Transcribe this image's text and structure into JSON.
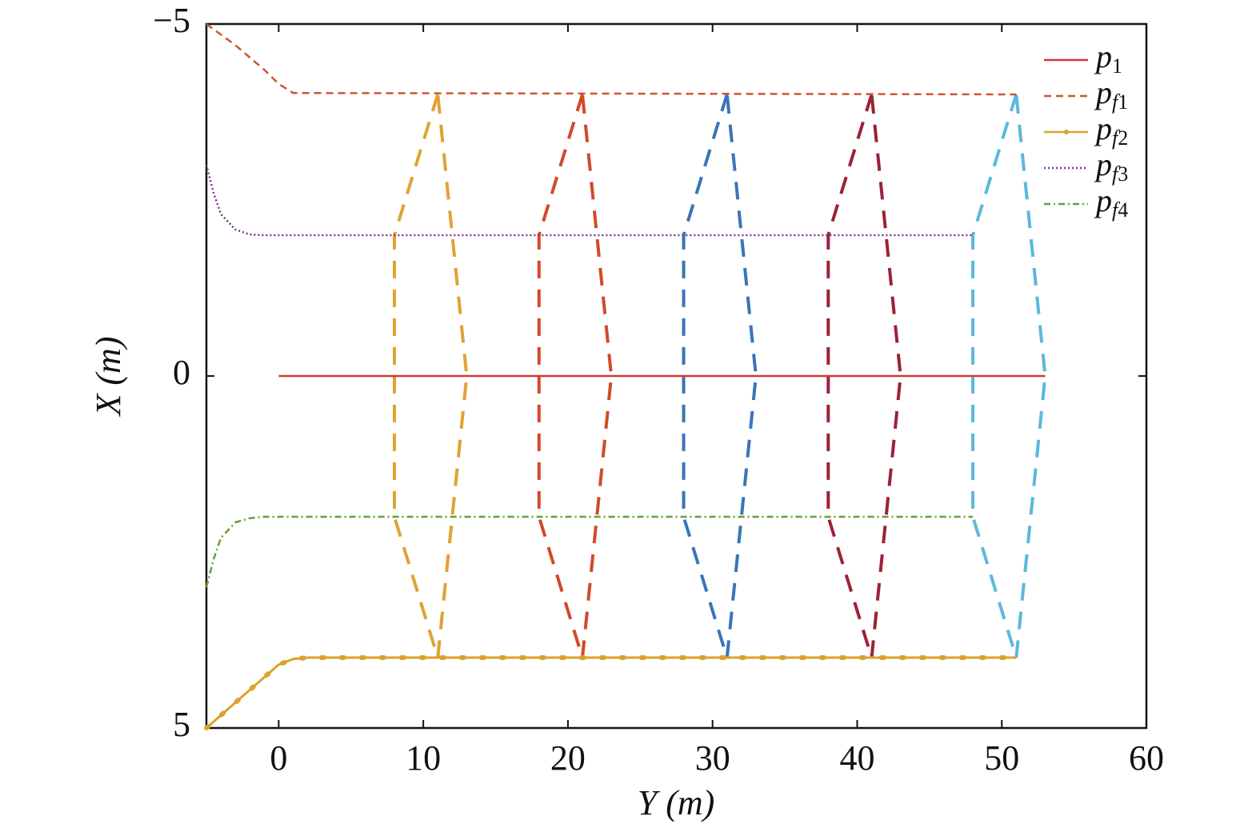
{
  "chart_data": {
    "type": "line",
    "xlabel": "Y (m)",
    "ylabel": "X (m)",
    "xlim": [
      -5,
      60
    ],
    "xticks": [
      0,
      10,
      20,
      30,
      40,
      50,
      60
    ],
    "ylim": [
      -5,
      5
    ],
    "y_inverted": true,
    "yticks": [
      {
        "value": -5,
        "label": "−5"
      },
      0,
      5
    ],
    "legend": "upper right",
    "series": [
      {
        "name": "p1",
        "color": "#d43a32",
        "line_style": "solid",
        "x": [
          0,
          53
        ],
        "values": [
          0,
          0
        ]
      },
      {
        "name": "pf1",
        "color": "#cc5530",
        "line_style": "dashed",
        "x": [
          -5,
          -3,
          -1,
          0,
          1,
          51
        ],
        "values": [
          -5,
          -4.7,
          -4.35,
          -4.15,
          -4.02,
          -4
        ]
      },
      {
        "name": "pf2",
        "color": "#dca22a",
        "line_style": "solid-dot",
        "x": [
          -5,
          0,
          1,
          2,
          51
        ],
        "values": [
          5,
          4.1,
          4.02,
          4,
          4
        ]
      },
      {
        "name": "pf3",
        "color": "#7a3090",
        "line_style": "dotted",
        "x": [
          -5,
          -4.5,
          -4,
          -3,
          -2,
          -1,
          48
        ],
        "values": [
          -3,
          -2.6,
          -2.3,
          -2.08,
          -2.01,
          -2,
          -2
        ]
      },
      {
        "name": "pf4",
        "color": "#62a232",
        "line_style": "dashdot",
        "x": [
          -5,
          -4.5,
          -4,
          -3,
          -2,
          -1,
          48
        ],
        "values": [
          3,
          2.6,
          2.3,
          2.08,
          2.02,
          2,
          2
        ]
      }
    ],
    "formations": [
      {
        "color": "#e0a232",
        "x": [
          11,
          8,
          8,
          11,
          13,
          11
        ],
        "values": [
          -4,
          -2,
          2,
          4,
          0,
          -4
        ]
      },
      {
        "color": "#d24a28",
        "x": [
          21,
          18,
          18,
          21,
          23,
          21
        ],
        "values": [
          -4,
          -2,
          2,
          4,
          0,
          -4
        ]
      },
      {
        "color": "#3a74ba",
        "x": [
          31,
          28,
          28,
          31,
          33,
          31
        ],
        "values": [
          -4,
          -2,
          2,
          4,
          0,
          -4
        ]
      },
      {
        "color": "#9c2236",
        "x": [
          41,
          38,
          38,
          41,
          43,
          41
        ],
        "values": [
          -4,
          -2,
          2,
          4,
          0,
          -4
        ]
      },
      {
        "color": "#5cb8dc",
        "x": [
          51,
          48,
          48,
          51,
          53,
          51
        ],
        "values": [
          -4,
          -2,
          2,
          4,
          0,
          -4
        ]
      }
    ]
  }
}
